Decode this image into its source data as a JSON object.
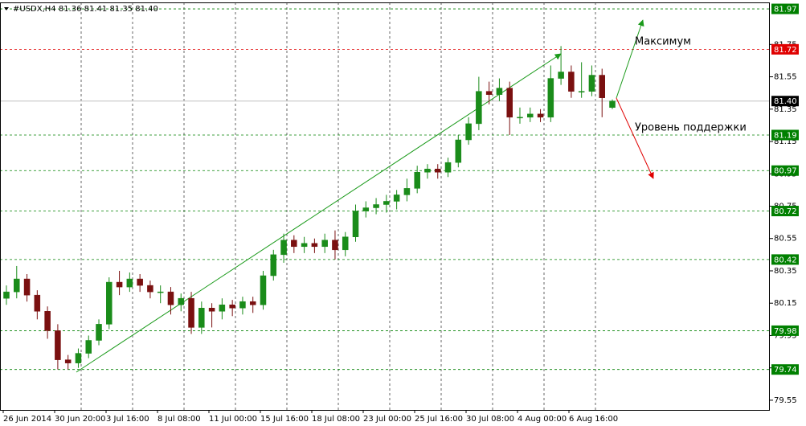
{
  "chart_data": {
    "type": "candlestick",
    "header": "#USDX,H4  81.36 81.41 81.35 81.40",
    "annotations": [
      "Максимум",
      "Уровень поддержки"
    ],
    "x_labels": [
      "26 Jun 2014",
      "30 Jun 20:00",
      "3 Jul 16:00",
      "8 Jul 08:00",
      "11 Jul 00:00",
      "15 Jul 16:00",
      "18 Jul 08:00",
      "23 Jul 00:00",
      "25 Jul 16:00",
      "30 Jul 08:00",
      "4 Aug 00:00",
      "6 Aug 16:00"
    ],
    "open": [
      80.18,
      80.22,
      80.3,
      80.2,
      80.1,
      79.98,
      79.8,
      79.78,
      79.84,
      79.92,
      80.02,
      80.28,
      80.25,
      80.3,
      80.26,
      80.22,
      80.22,
      80.14,
      80.18,
      80.0,
      80.12,
      80.1,
      80.14,
      80.12,
      80.16,
      80.14,
      80.32,
      80.45,
      80.54,
      80.5,
      80.52,
      80.5,
      80.54,
      80.48,
      80.56,
      80.72,
      80.74,
      80.76,
      80.78,
      80.82,
      80.86,
      80.96,
      80.98,
      80.96,
      81.02,
      81.16,
      81.26,
      81.46,
      81.44,
      81.48,
      81.3,
      81.3,
      81.32,
      81.3,
      81.54,
      81.58,
      81.46,
      81.46,
      81.56,
      81.36
    ],
    "high": [
      80.26,
      80.38,
      80.33,
      80.23,
      80.13,
      80.02,
      79.83,
      79.87,
      79.95,
      80.05,
      80.31,
      80.35,
      80.34,
      80.33,
      80.29,
      80.26,
      80.25,
      80.21,
      80.22,
      80.16,
      80.15,
      80.18,
      80.17,
      80.19,
      80.19,
      80.35,
      80.48,
      80.58,
      80.57,
      80.56,
      80.55,
      80.58,
      80.6,
      80.59,
      80.76,
      80.78,
      80.8,
      80.82,
      80.85,
      80.92,
      81.0,
      81.01,
      81.01,
      81.05,
      81.19,
      81.3,
      81.55,
      81.52,
      81.54,
      81.52,
      81.36,
      81.36,
      81.35,
      81.62,
      81.74,
      81.62,
      81.64,
      81.62,
      81.6,
      81.41
    ],
    "low": [
      80.14,
      80.18,
      80.16,
      80.05,
      79.93,
      79.74,
      79.74,
      79.75,
      79.81,
      79.89,
      79.99,
      80.2,
      80.22,
      80.22,
      80.18,
      80.15,
      80.08,
      80.1,
      79.96,
      79.96,
      80.0,
      80.05,
      80.07,
      80.08,
      80.09,
      80.11,
      80.29,
      80.4,
      80.46,
      80.46,
      80.46,
      80.46,
      80.42,
      80.44,
      80.53,
      80.68,
      80.7,
      80.71,
      80.73,
      80.78,
      80.83,
      80.92,
      80.92,
      80.93,
      80.99,
      81.13,
      81.22,
      81.38,
      81.4,
      81.19,
      81.26,
      81.27,
      81.27,
      81.27,
      81.5,
      81.42,
      81.42,
      81.43,
      81.3,
      81.35
    ],
    "close": [
      80.22,
      80.3,
      80.2,
      80.1,
      79.98,
      79.8,
      79.78,
      79.84,
      79.92,
      80.02,
      80.28,
      80.25,
      80.3,
      80.26,
      80.22,
      80.22,
      80.14,
      80.18,
      80.0,
      80.12,
      80.1,
      80.14,
      80.12,
      80.16,
      80.14,
      80.32,
      80.45,
      80.54,
      80.5,
      80.52,
      80.5,
      80.54,
      80.48,
      80.56,
      80.72,
      80.74,
      80.76,
      80.78,
      80.82,
      80.86,
      80.96,
      80.98,
      80.96,
      81.02,
      81.16,
      81.26,
      81.46,
      81.44,
      81.48,
      81.3,
      81.3,
      81.32,
      81.3,
      81.54,
      81.58,
      81.46,
      81.46,
      81.56,
      81.42,
      81.4
    ],
    "up_color": "#1a8c1a",
    "down_color": "#7a1010",
    "ylim": [
      79.49,
      82.01
    ],
    "yticks": [
      81.75,
      81.55,
      81.35,
      81.15,
      80.95,
      80.75,
      80.55,
      80.35,
      80.15,
      79.95,
      79.75,
      79.55
    ],
    "levels": [
      81.97,
      81.72,
      81.19,
      80.97,
      80.72,
      80.42,
      79.98,
      79.74
    ],
    "level_colors": [
      "#008000",
      "#e00000",
      "#008000",
      "#008000",
      "#008000",
      "#008000",
      "#008000",
      "#008000"
    ],
    "last_price": {
      "value": 81.4,
      "label": "81.40"
    },
    "grid": true
  }
}
